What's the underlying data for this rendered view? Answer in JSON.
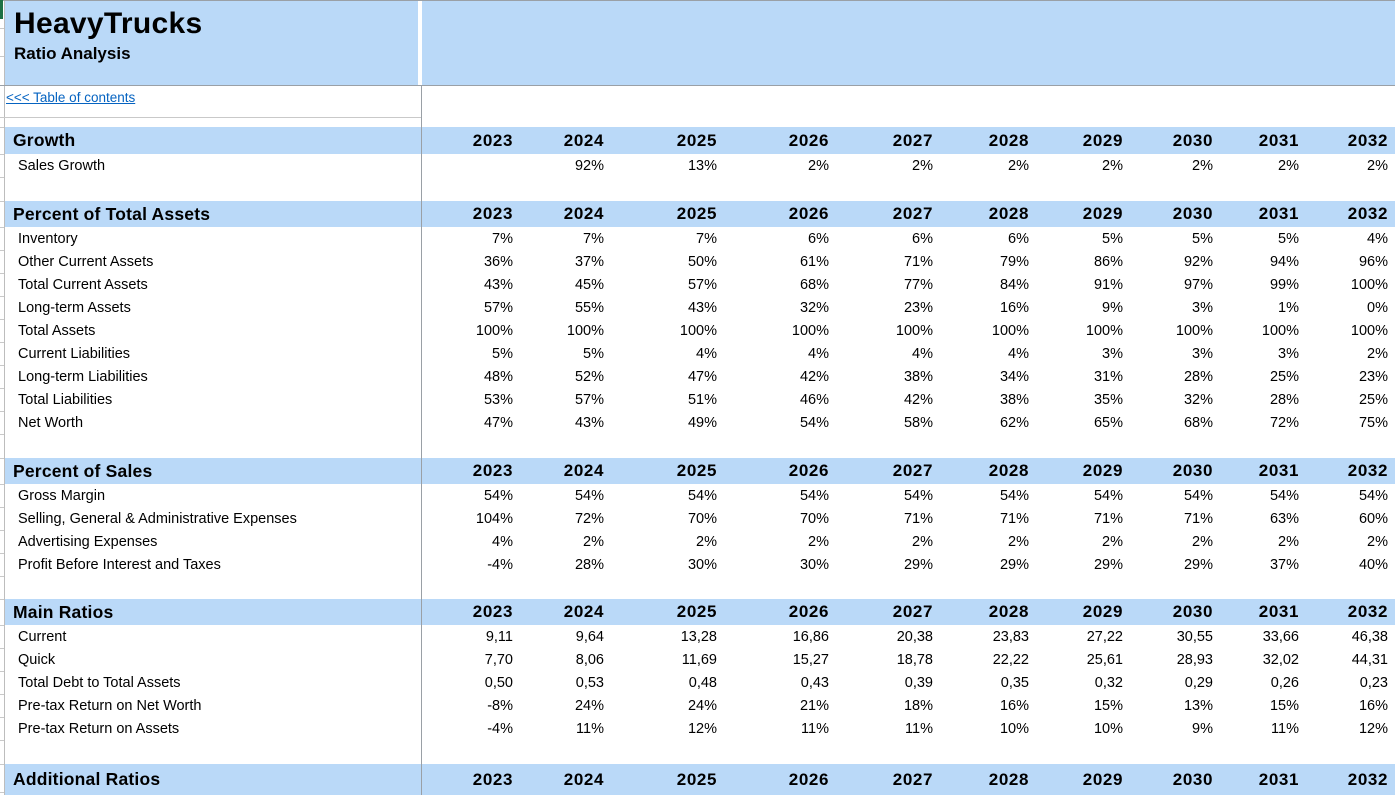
{
  "header": {
    "title": "HeavyTrucks",
    "subtitle": "Ratio Analysis"
  },
  "nav": {
    "toc_link": "<<< Table of contents"
  },
  "years": [
    "2023",
    "2024",
    "2025",
    "2026",
    "2027",
    "2028",
    "2029",
    "2030",
    "2031",
    "2032"
  ],
  "sections": [
    {
      "title": "Growth",
      "rows": [
        {
          "label": "Sales Growth",
          "values": [
            "",
            "92%",
            "13%",
            "2%",
            "2%",
            "2%",
            "2%",
            "2%",
            "2%",
            "2%"
          ]
        }
      ]
    },
    {
      "title": "Percent of Total Assets",
      "rows": [
        {
          "label": "Inventory",
          "values": [
            "7%",
            "7%",
            "7%",
            "6%",
            "6%",
            "6%",
            "5%",
            "5%",
            "5%",
            "4%"
          ]
        },
        {
          "label": "Other Current Assets",
          "values": [
            "36%",
            "37%",
            "50%",
            "61%",
            "71%",
            "79%",
            "86%",
            "92%",
            "94%",
            "96%"
          ]
        },
        {
          "label": "Total Current Assets",
          "values": [
            "43%",
            "45%",
            "57%",
            "68%",
            "77%",
            "84%",
            "91%",
            "97%",
            "99%",
            "100%"
          ]
        },
        {
          "label": "Long-term Assets",
          "values": [
            "57%",
            "55%",
            "43%",
            "32%",
            "23%",
            "16%",
            "9%",
            "3%",
            "1%",
            "0%"
          ]
        },
        {
          "label": "Total Assets",
          "values": [
            "100%",
            "100%",
            "100%",
            "100%",
            "100%",
            "100%",
            "100%",
            "100%",
            "100%",
            "100%"
          ]
        },
        {
          "label": "Current Liabilities",
          "values": [
            "5%",
            "5%",
            "4%",
            "4%",
            "4%",
            "4%",
            "3%",
            "3%",
            "3%",
            "2%"
          ]
        },
        {
          "label": "Long-term Liabilities",
          "values": [
            "48%",
            "52%",
            "47%",
            "42%",
            "38%",
            "34%",
            "31%",
            "28%",
            "25%",
            "23%"
          ]
        },
        {
          "label": "Total Liabilities",
          "values": [
            "53%",
            "57%",
            "51%",
            "46%",
            "42%",
            "38%",
            "35%",
            "32%",
            "28%",
            "25%"
          ]
        },
        {
          "label": "Net Worth",
          "values": [
            "47%",
            "43%",
            "49%",
            "54%",
            "58%",
            "62%",
            "65%",
            "68%",
            "72%",
            "75%"
          ]
        }
      ]
    },
    {
      "title": "Percent of Sales",
      "rows": [
        {
          "label": "Gross Margin",
          "values": [
            "54%",
            "54%",
            "54%",
            "54%",
            "54%",
            "54%",
            "54%",
            "54%",
            "54%",
            "54%"
          ]
        },
        {
          "label": "Selling, General & Administrative Expenses",
          "values": [
            "104%",
            "72%",
            "70%",
            "70%",
            "71%",
            "71%",
            "71%",
            "71%",
            "63%",
            "60%"
          ]
        },
        {
          "label": "Advertising Expenses",
          "values": [
            "4%",
            "2%",
            "2%",
            "2%",
            "2%",
            "2%",
            "2%",
            "2%",
            "2%",
            "2%"
          ]
        },
        {
          "label": "Profit Before Interest and Taxes",
          "values": [
            "-4%",
            "28%",
            "30%",
            "30%",
            "29%",
            "29%",
            "29%",
            "29%",
            "37%",
            "40%"
          ]
        }
      ]
    },
    {
      "title": "Main Ratios",
      "rows": [
        {
          "label": "Current",
          "values": [
            "9,11",
            "9,64",
            "13,28",
            "16,86",
            "20,38",
            "23,83",
            "27,22",
            "30,55",
            "33,66",
            "46,38"
          ]
        },
        {
          "label": "Quick",
          "values": [
            "7,70",
            "8,06",
            "11,69",
            "15,27",
            "18,78",
            "22,22",
            "25,61",
            "28,93",
            "32,02",
            "44,31"
          ]
        },
        {
          "label": "Total Debt to Total Assets",
          "values": [
            "0,50",
            "0,53",
            "0,48",
            "0,43",
            "0,39",
            "0,35",
            "0,32",
            "0,29",
            "0,26",
            "0,23"
          ]
        },
        {
          "label": "Pre-tax Return on Net Worth",
          "values": [
            "-8%",
            "24%",
            "24%",
            "21%",
            "18%",
            "16%",
            "15%",
            "13%",
            "15%",
            "16%"
          ]
        },
        {
          "label": "Pre-tax Return on Assets",
          "values": [
            "-4%",
            "11%",
            "12%",
            "11%",
            "11%",
            "10%",
            "10%",
            "9%",
            "11%",
            "12%"
          ]
        }
      ]
    },
    {
      "title": "Additional Ratios",
      "rows": []
    }
  ],
  "colors": {
    "band_blue": "#BAD9F8",
    "link_blue": "#0563C1",
    "grid_gray": "#9AA0A6",
    "tab_green": "#1E7145"
  }
}
